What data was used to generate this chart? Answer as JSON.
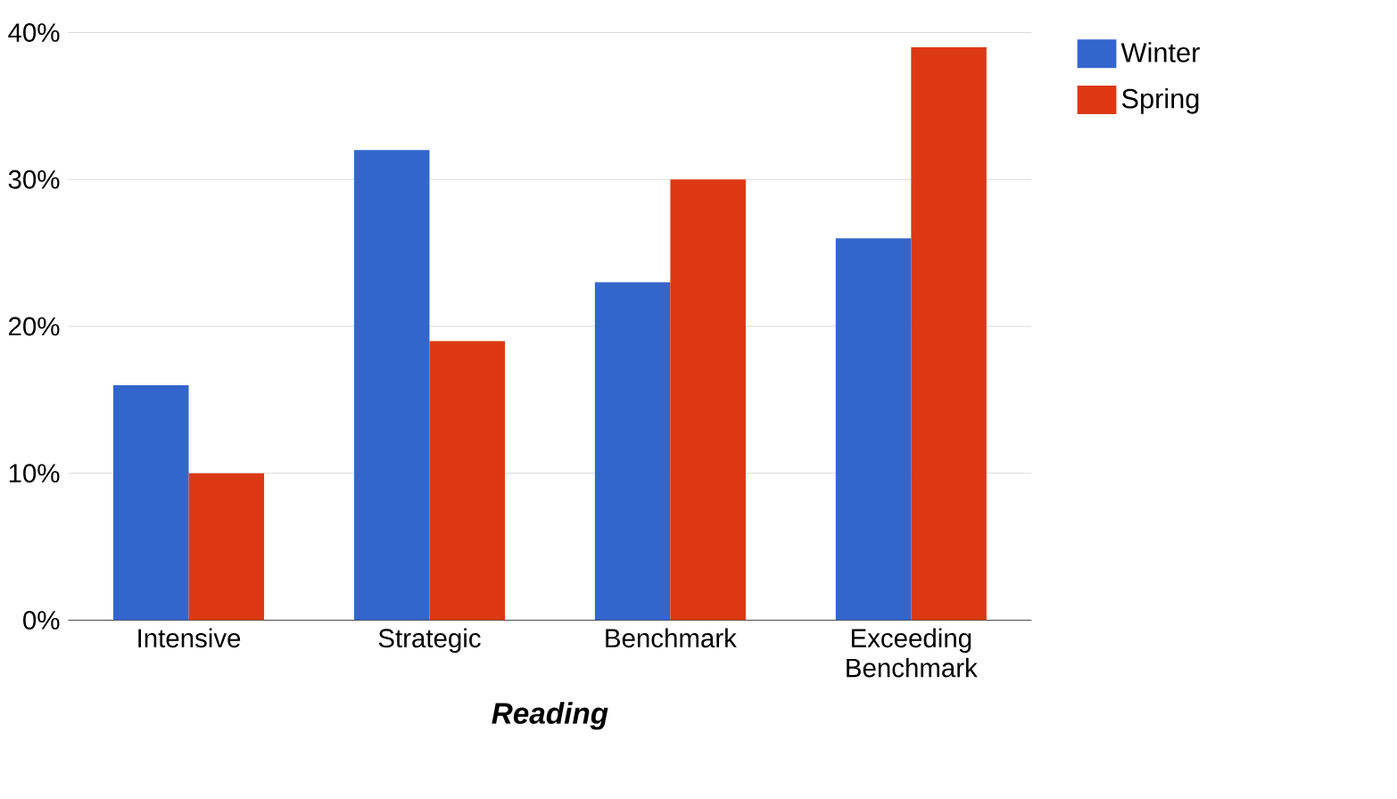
{
  "chart_data": {
    "type": "bar",
    "xlabel": "Reading",
    "categories": [
      "Intensive",
      "Strategic",
      "Benchmark",
      "Exceeding Benchmark"
    ],
    "series": [
      {
        "name": "Winter",
        "color": "#3366cc",
        "values": [
          16,
          32,
          23,
          26
        ]
      },
      {
        "name": "Spring",
        "color": "#dc3912",
        "values": [
          10,
          19,
          30,
          39
        ]
      }
    ],
    "ylim": [
      0,
      40
    ],
    "yticks": [
      {
        "value": 0,
        "label": "0%"
      },
      {
        "value": 10,
        "label": "10%"
      },
      {
        "value": 20,
        "label": "20%"
      },
      {
        "value": 30,
        "label": "30%"
      },
      {
        "value": 40,
        "label": "40%"
      }
    ],
    "grid": "y",
    "legend": "top right"
  }
}
